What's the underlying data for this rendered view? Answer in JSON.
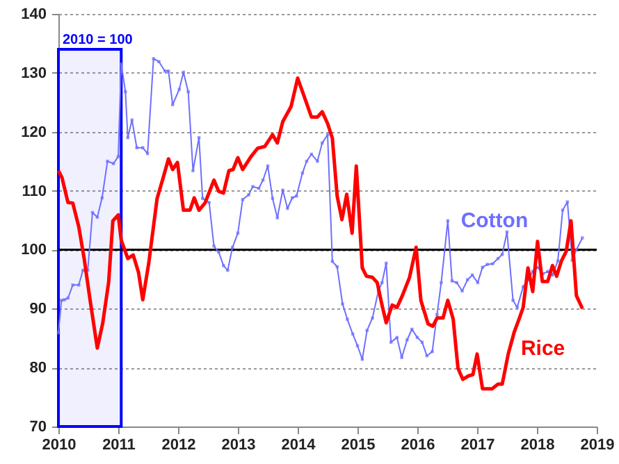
{
  "chart_data": {
    "type": "line",
    "xlim": [
      2010,
      2019
    ],
    "xticks": [
      2010,
      2011,
      2012,
      2013,
      2014,
      2015,
      2016,
      2017,
      2018,
      2019
    ],
    "ylim": [
      70,
      140
    ],
    "yticks": [
      70,
      80,
      90,
      100,
      110,
      120,
      130,
      140
    ],
    "grid": "y",
    "ref_lines": [
      {
        "axis": "y",
        "value": 100,
        "color": "#000000"
      }
    ],
    "bands": [
      {
        "axis": "x",
        "from": 2010,
        "to": 2011.05,
        "label": "2010 = 100",
        "color": "#0000ff"
      }
    ],
    "series": [
      {
        "name": "Cotton",
        "color": "#6f6fff",
        "marker": "square",
        "x": [
          2010.0,
          2010.05,
          2010.1,
          2010.16,
          2010.24,
          2010.34,
          2010.41,
          2010.49,
          2010.57,
          2010.65,
          2010.73,
          2010.82,
          2010.92,
          2011.0,
          2011.05,
          2011.12,
          2011.16,
          2011.23,
          2011.31,
          2011.41,
          2011.49,
          2011.59,
          2011.68,
          2011.78,
          2011.84,
          2011.91,
          2012.02,
          2012.09,
          2012.17,
          2012.25,
          2012.35,
          2012.41,
          2012.52,
          2012.6,
          2012.68,
          2012.76,
          2012.83,
          2012.91,
          2013.0,
          2013.08,
          2013.18,
          2013.25,
          2013.35,
          2013.42,
          2013.5,
          2013.58,
          2013.66,
          2013.75,
          2013.83,
          2013.91,
          2013.98,
          2014.08,
          2014.15,
          2014.23,
          2014.33,
          2014.41,
          2014.5,
          2014.58,
          2014.66,
          2014.75,
          2014.83,
          2014.92,
          2015.0,
          2015.08,
          2015.16,
          2015.25,
          2015.35,
          2015.41,
          2015.48,
          2015.56,
          2015.66,
          2015.74,
          2015.83,
          2015.91,
          2016.0,
          2016.08,
          2016.16,
          2016.25,
          2016.33,
          2016.4,
          2016.51,
          2016.58,
          2016.66,
          2016.75,
          2016.84,
          2016.92,
          2017.01,
          2017.09,
          2017.17,
          2017.26,
          2017.35,
          2017.42,
          2017.5,
          2017.6,
          2017.67,
          2017.77,
          2017.85,
          2017.93,
          2018.01,
          2018.1,
          2018.18,
          2018.26,
          2018.35,
          2018.43,
          2018.51,
          2018.59,
          2018.66,
          2018.76
        ],
        "values": [
          85.9,
          91.4,
          91.5,
          91.8,
          94,
          94,
          96.5,
          96.5,
          106.3,
          105.5,
          108.8,
          115,
          114.6,
          115.8,
          131.5,
          126.8,
          119,
          122,
          117.3,
          117.3,
          116.3,
          132.4,
          131.9,
          130.3,
          130.3,
          124.6,
          127.2,
          130.1,
          126.8,
          113.4,
          119,
          108.7,
          108,
          100.6,
          99.6,
          97.3,
          96.5,
          100.4,
          102.8,
          108.5,
          109.3,
          110.7,
          110.4,
          111.8,
          114.2,
          108.7,
          105.4,
          110.1,
          107,
          108.8,
          109.1,
          113,
          115,
          116.2,
          115,
          118.1,
          119.5,
          98,
          97.1,
          90.8,
          88.2,
          85.7,
          83.7,
          81.4,
          86.3,
          88.4,
          93,
          94.4,
          97.7,
          84.3,
          85.1,
          81.7,
          84.7,
          86.5,
          85.1,
          84.3,
          82,
          82.7,
          89,
          94.4,
          104.9,
          94.7,
          94.4,
          93,
          94.9,
          95.7,
          94.4,
          97,
          97.5,
          97.6,
          98.5,
          99.2,
          103,
          91.4,
          90.2,
          93.7,
          94.9,
          96.3,
          97,
          95.9,
          96.3,
          95.7,
          98.1,
          106.7,
          108.1,
          98.2,
          100,
          102
        ]
      },
      {
        "name": "Rice",
        "color": "#ff0000",
        "x": [
          2010.0,
          2010.06,
          2010.16,
          2010.24,
          2010.34,
          2010.43,
          2010.53,
          2010.65,
          2010.74,
          2010.84,
          2010.91,
          2011.0,
          2011.05,
          2011.16,
          2011.25,
          2011.34,
          2011.41,
          2011.51,
          2011.65,
          2011.74,
          2011.84,
          2011.91,
          2011.99,
          2012.09,
          2012.2,
          2012.27,
          2012.35,
          2012.45,
          2012.6,
          2012.68,
          2012.76,
          2012.85,
          2012.92,
          2013.0,
          2013.08,
          2013.22,
          2013.33,
          2013.45,
          2013.58,
          2013.66,
          2013.75,
          2013.89,
          2014.0,
          2014.14,
          2014.23,
          2014.33,
          2014.41,
          2014.5,
          2014.58,
          2014.66,
          2014.74,
          2014.82,
          2014.91,
          2014.98,
          2015.08,
          2015.15,
          2015.25,
          2015.33,
          2015.41,
          2015.48,
          2015.58,
          2015.66,
          2015.75,
          2015.87,
          2015.98,
          2016.06,
          2016.18,
          2016.26,
          2016.33,
          2016.43,
          2016.51,
          2016.6,
          2016.68,
          2016.76,
          2016.86,
          2016.93,
          2017.0,
          2017.09,
          2017.25,
          2017.35,
          2017.42,
          2017.52,
          2017.62,
          2017.7,
          2017.77,
          2017.85,
          2017.93,
          2018.01,
          2018.09,
          2018.18,
          2018.26,
          2018.33,
          2018.41,
          2018.49,
          2018.57,
          2018.66,
          2018.76
        ],
        "values": [
          113.4,
          112.2,
          108,
          107.9,
          103.9,
          98.5,
          91.4,
          83.3,
          87.5,
          94.5,
          104.9,
          105.9,
          101.6,
          98.5,
          99.1,
          96.1,
          91.5,
          97.7,
          108.7,
          111.8,
          115.4,
          113.6,
          114.8,
          106.7,
          106.7,
          108.8,
          106.7,
          107.9,
          111.8,
          109.9,
          109.6,
          113.4,
          113.6,
          115.6,
          113.6,
          115.8,
          117.2,
          117.5,
          119.5,
          118.1,
          121.7,
          124.3,
          129.1,
          125.1,
          122.5,
          122.5,
          123.4,
          121.4,
          118.9,
          109.1,
          105.1,
          109.4,
          102.8,
          114.2,
          96.9,
          95.5,
          95.3,
          94.4,
          90.6,
          87.6,
          90.6,
          90.2,
          92.2,
          95.3,
          100.4,
          91.4,
          87.4,
          87,
          88.4,
          88.4,
          91.4,
          88.2,
          79.9,
          78,
          78.6,
          78.8,
          82.3,
          76.4,
          76.4,
          77.2,
          77.2,
          82.3,
          86,
          88.2,
          90.2,
          96.9,
          92.9,
          101.4,
          94.6,
          94.6,
          97.3,
          95.5,
          98.1,
          99.7,
          104.9,
          92.2,
          90
        ]
      }
    ]
  }
}
